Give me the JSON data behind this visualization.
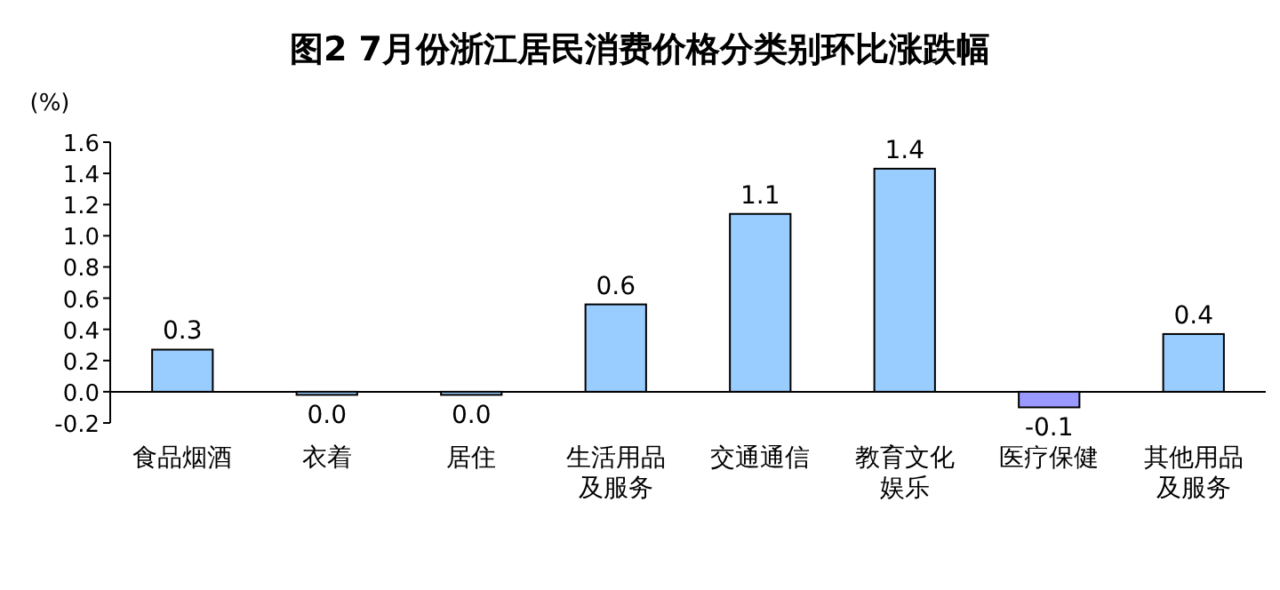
{
  "chart_data": {
    "type": "bar",
    "title": "图2  7月份浙江居民消费价格分类别环比涨跌幅",
    "ylabel": "(%)",
    "categories": [
      "食品烟酒",
      "衣着",
      "居住",
      "生活用品及服务",
      "交通通信",
      "教育文化娱乐",
      "医疗保健",
      "其他用品及服务"
    ],
    "values": [
      0.27,
      -0.02,
      -0.02,
      0.56,
      1.14,
      1.43,
      -0.1,
      0.37
    ],
    "colors": [
      "#99ccff",
      "#99ccff",
      "#99ccff",
      "#99ccff",
      "#99ccff",
      "#99ccff",
      "#9999ff",
      "#99ccff"
    ],
    "value_labels": [
      "0.3",
      "0.0",
      "0.0",
      "0.6",
      "1.1",
      "1.4",
      "-0.1",
      "0.4"
    ],
    "ylim": [
      -0.2,
      1.6
    ],
    "yticks": [
      {
        "value": -0.2,
        "label": "-0.2"
      },
      {
        "value": 0,
        "label": "0.0"
      },
      {
        "value": 0.2,
        "label": "0.2"
      },
      {
        "value": 0.4,
        "label": "0.4"
      },
      {
        "value": 0.6,
        "label": "0.6"
      },
      {
        "value": 0.8,
        "label": "0.8"
      },
      {
        "value": 1,
        "label": "1.0"
      },
      {
        "value": 1.2,
        "label": "1.2"
      },
      {
        "value": 1.4,
        "label": "1.4"
      },
      {
        "value": 1.6,
        "label": "1.6"
      }
    ],
    "grid": false
  }
}
